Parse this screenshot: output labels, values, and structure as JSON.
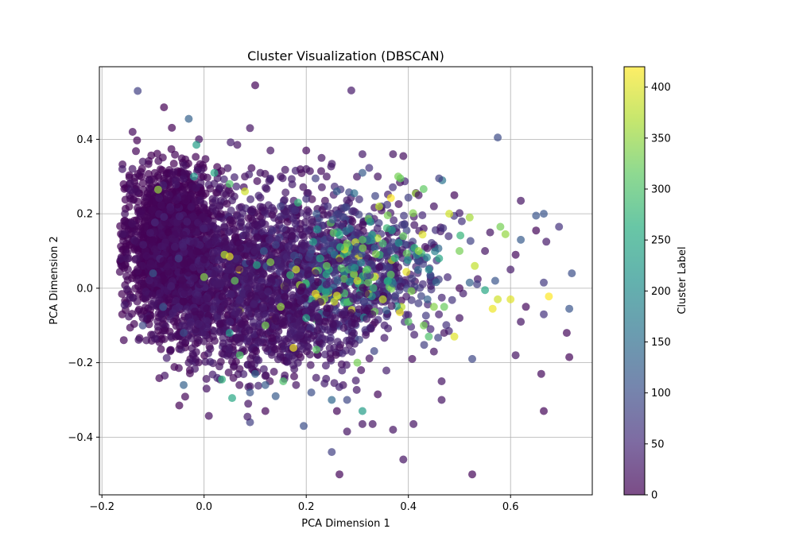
{
  "chart_data": {
    "type": "scatter",
    "title": "Cluster Visualization (DBSCAN)",
    "xlabel": "PCA Dimension 1",
    "ylabel": "PCA Dimension 2",
    "xlim": [
      -0.205,
      0.76
    ],
    "ylim": [
      -0.555,
      0.595
    ],
    "x_ticks": [
      -0.2,
      0.0,
      0.2,
      0.4,
      0.6
    ],
    "x_tick_labels": [
      "−0.2",
      "0.0",
      "0.2",
      "0.4",
      "0.6"
    ],
    "y_ticks": [
      -0.4,
      -0.2,
      0.0,
      0.2,
      0.4
    ],
    "y_tick_labels": [
      "−0.4",
      "−0.2",
      "0.0",
      "0.2",
      "0.4"
    ],
    "grid": true,
    "colormap": "viridis",
    "colorbar": {
      "label": "Cluster Label",
      "min": 0,
      "max": 420,
      "ticks": [
        0,
        50,
        100,
        150,
        200,
        250,
        300,
        350,
        400
      ],
      "tick_labels": [
        "0",
        "50",
        "100",
        "150",
        "200",
        "250",
        "300",
        "350",
        "400"
      ]
    },
    "point_alpha": 0.7,
    "points": [
      {
        "x": -0.13,
        "y": 0.53,
        "c": 80
      },
      {
        "x": 0.1,
        "y": 0.545,
        "c": 5
      },
      {
        "x": -0.03,
        "y": 0.455,
        "c": 130
      },
      {
        "x": 0.575,
        "y": 0.405,
        "c": 95
      },
      {
        "x": -0.14,
        "y": 0.42,
        "c": 10
      },
      {
        "x": 0.09,
        "y": 0.43,
        "c": 20
      },
      {
        "x": -0.01,
        "y": 0.4,
        "c": 15
      },
      {
        "x": -0.015,
        "y": 0.385,
        "c": 230
      },
      {
        "x": 0.2,
        "y": 0.37,
        "c": 10
      },
      {
        "x": 0.37,
        "y": 0.36,
        "c": 20
      },
      {
        "x": 0.39,
        "y": 0.355,
        "c": 15
      },
      {
        "x": 0.31,
        "y": 0.36,
        "c": 30
      },
      {
        "x": -0.16,
        "y": 0.32,
        "c": 30
      },
      {
        "x": 0.38,
        "y": 0.3,
        "c": 330
      },
      {
        "x": 0.46,
        "y": 0.295,
        "c": 80
      },
      {
        "x": 0.49,
        "y": 0.25,
        "c": 10
      },
      {
        "x": 0.31,
        "y": 0.31,
        "c": 120
      },
      {
        "x": 0.62,
        "y": 0.235,
        "c": 20
      },
      {
        "x": 0.65,
        "y": 0.195,
        "c": 110
      },
      {
        "x": 0.665,
        "y": 0.2,
        "c": 110
      },
      {
        "x": 0.695,
        "y": 0.165,
        "c": 60
      },
      {
        "x": 0.65,
        "y": 0.155,
        "c": 5
      },
      {
        "x": 0.62,
        "y": 0.13,
        "c": 120
      },
      {
        "x": 0.67,
        "y": 0.125,
        "c": 30
      },
      {
        "x": 0.58,
        "y": 0.165,
        "c": 330
      },
      {
        "x": 0.59,
        "y": 0.145,
        "c": 350
      },
      {
        "x": 0.52,
        "y": 0.19,
        "c": 360
      },
      {
        "x": 0.48,
        "y": 0.2,
        "c": 390
      },
      {
        "x": 0.61,
        "y": 0.09,
        "c": 10
      },
      {
        "x": 0.6,
        "y": 0.05,
        "c": 30
      },
      {
        "x": 0.72,
        "y": 0.04,
        "c": 100
      },
      {
        "x": 0.665,
        "y": 0.015,
        "c": 70
      },
      {
        "x": 0.57,
        "y": 0.02,
        "c": 110
      },
      {
        "x": 0.52,
        "y": 0.015,
        "c": 130
      },
      {
        "x": 0.55,
        "y": -0.005,
        "c": 250
      },
      {
        "x": 0.575,
        "y": -0.03,
        "c": 390
      },
      {
        "x": 0.6,
        "y": -0.03,
        "c": 400
      },
      {
        "x": 0.675,
        "y": -0.022,
        "c": 420
      },
      {
        "x": 0.565,
        "y": -0.055,
        "c": 410
      },
      {
        "x": 0.63,
        "y": -0.05,
        "c": 10
      },
      {
        "x": 0.715,
        "y": -0.055,
        "c": 110
      },
      {
        "x": 0.665,
        "y": -0.07,
        "c": 60
      },
      {
        "x": 0.62,
        "y": -0.09,
        "c": 20
      },
      {
        "x": 0.71,
        "y": -0.12,
        "c": 10
      },
      {
        "x": 0.49,
        "y": -0.13,
        "c": 400
      },
      {
        "x": 0.47,
        "y": -0.12,
        "c": 20
      },
      {
        "x": 0.61,
        "y": -0.18,
        "c": 20
      },
      {
        "x": 0.715,
        "y": -0.185,
        "c": 5
      },
      {
        "x": 0.525,
        "y": -0.19,
        "c": 90
      },
      {
        "x": 0.66,
        "y": -0.23,
        "c": 10
      },
      {
        "x": 0.465,
        "y": -0.25,
        "c": 20
      },
      {
        "x": 0.465,
        "y": -0.3,
        "c": 20
      },
      {
        "x": 0.665,
        "y": -0.33,
        "c": 5
      },
      {
        "x": 0.525,
        "y": -0.5,
        "c": 5
      },
      {
        "x": 0.265,
        "y": -0.5,
        "c": 5
      },
      {
        "x": 0.25,
        "y": -0.44,
        "c": 80
      },
      {
        "x": 0.39,
        "y": -0.46,
        "c": 20
      },
      {
        "x": 0.37,
        "y": -0.38,
        "c": 20
      },
      {
        "x": 0.41,
        "y": -0.365,
        "c": 20
      },
      {
        "x": 0.34,
        "y": -0.285,
        "c": 10
      },
      {
        "x": 0.31,
        "y": -0.33,
        "c": 230
      },
      {
        "x": 0.28,
        "y": -0.385,
        "c": 20
      },
      {
        "x": 0.31,
        "y": -0.365,
        "c": 20
      },
      {
        "x": 0.33,
        "y": -0.365,
        "c": 20
      },
      {
        "x": 0.195,
        "y": -0.37,
        "c": 100
      },
      {
        "x": 0.09,
        "y": -0.36,
        "c": 80
      },
      {
        "x": 0.085,
        "y": -0.345,
        "c": 30
      },
      {
        "x": -0.04,
        "y": -0.26,
        "c": 130
      },
      {
        "x": 0.035,
        "y": -0.245,
        "c": 270
      },
      {
        "x": 0.055,
        "y": -0.295,
        "c": 250
      },
      {
        "x": 0.14,
        "y": -0.29,
        "c": 120
      },
      {
        "x": 0.155,
        "y": -0.25,
        "c": 300
      },
      {
        "x": 0.175,
        "y": -0.16,
        "c": 410
      },
      {
        "x": 0.22,
        "y": -0.165,
        "c": 310
      },
      {
        "x": 0.3,
        "y": -0.2,
        "c": 330
      },
      {
        "x": 0.4,
        "y": -0.09,
        "c": 310
      },
      {
        "x": 0.43,
        "y": -0.1,
        "c": 330
      },
      {
        "x": 0.44,
        "y": -0.13,
        "c": 300
      },
      {
        "x": 0.45,
        "y": -0.05,
        "c": 340
      },
      {
        "x": 0.47,
        "y": -0.05,
        "c": 320
      },
      {
        "x": 0.35,
        "y": -0.03,
        "c": 380
      },
      {
        "x": 0.3,
        "y": 0.02,
        "c": 390
      },
      {
        "x": 0.32,
        "y": 0.05,
        "c": 300
      },
      {
        "x": 0.36,
        "y": 0.02,
        "c": 250
      },
      {
        "x": 0.24,
        "y": 0.06,
        "c": 320
      },
      {
        "x": 0.18,
        "y": 0.05,
        "c": 390
      },
      {
        "x": 0.13,
        "y": 0.07,
        "c": 340
      },
      {
        "x": 0.06,
        "y": 0.02,
        "c": 320
      },
      {
        "x": 0.04,
        "y": 0.09,
        "c": 370
      },
      {
        "x": 0.05,
        "y": -0.12,
        "c": 220
      },
      {
        "x": 0.07,
        "y": -0.18,
        "c": 300
      },
      {
        "x": 0.12,
        "y": -0.1,
        "c": 330
      },
      {
        "x": 0.15,
        "y": -0.05,
        "c": 350
      },
      {
        "x": 0.2,
        "y": -0.08,
        "c": 240
      },
      {
        "x": 0.26,
        "y": -0.02,
        "c": 400
      },
      {
        "x": 0.28,
        "y": 0.12,
        "c": 330
      },
      {
        "x": 0.31,
        "y": 0.13,
        "c": 310
      },
      {
        "x": 0.35,
        "y": 0.12,
        "c": 290
      },
      {
        "x": 0.39,
        "y": 0.14,
        "c": 320
      },
      {
        "x": 0.42,
        "y": 0.1,
        "c": 350
      },
      {
        "x": 0.44,
        "y": 0.05,
        "c": 200
      },
      {
        "x": 0.46,
        "y": 0.08,
        "c": 250
      },
      {
        "x": 0.5,
        "y": 0.1,
        "c": 330
      },
      {
        "x": 0.53,
        "y": 0.06,
        "c": 380
      },
      {
        "x": 0.26,
        "y": 0.26,
        "c": 120
      },
      {
        "x": 0.2,
        "y": 0.24,
        "c": 60
      },
      {
        "x": 0.22,
        "y": 0.2,
        "c": 110
      },
      {
        "x": 0.15,
        "y": 0.22,
        "c": 80
      },
      {
        "x": 0.08,
        "y": 0.26,
        "c": 390
      },
      {
        "x": -0.09,
        "y": 0.265,
        "c": 350
      },
      {
        "x": -0.02,
        "y": 0.3,
        "c": 220
      },
      {
        "x": 0.02,
        "y": 0.31,
        "c": 250
      },
      {
        "x": 0.05,
        "y": 0.28,
        "c": 300
      },
      {
        "x": 0.0,
        "y": 0.03,
        "c": 340
      },
      {
        "x": 0.05,
        "y": 0.085,
        "c": 400
      },
      {
        "x": -0.05,
        "y": 0.08,
        "c": 80
      },
      {
        "x": -0.1,
        "y": 0.04,
        "c": 120
      },
      {
        "x": -0.08,
        "y": -0.05,
        "c": 110
      },
      {
        "x": -0.12,
        "y": -0.1,
        "c": 90
      },
      {
        "x": -0.04,
        "y": -0.12,
        "c": 100
      },
      {
        "x": 0.1,
        "y": -0.23,
        "c": 130
      },
      {
        "x": 0.09,
        "y": -0.28,
        "c": 110
      },
      {
        "x": 0.12,
        "y": -0.26,
        "c": 120
      },
      {
        "x": 0.25,
        "y": -0.3,
        "c": 140
      },
      {
        "x": 0.28,
        "y": -0.3,
        "c": 90
      },
      {
        "x": 0.21,
        "y": -0.28,
        "c": 100
      },
      {
        "x": 0.18,
        "y": -0.26,
        "c": 20
      },
      {
        "x": 0.08,
        "y": 0.3,
        "c": 20
      },
      {
        "x": 0.13,
        "y": 0.37,
        "c": 20
      },
      {
        "x": 0.065,
        "y": 0.385,
        "c": 20
      },
      {
        "x": -0.04,
        "y": 0.33,
        "c": 20
      },
      {
        "x": -0.12,
        "y": 0.34,
        "c": 20
      },
      {
        "x": -0.155,
        "y": 0.2,
        "c": 20
      },
      {
        "x": -0.16,
        "y": 0.145,
        "c": 20
      },
      {
        "x": -0.15,
        "y": 0.08,
        "c": 20
      },
      {
        "x": -0.145,
        "y": -0.025,
        "c": 20
      },
      {
        "x": -0.12,
        "y": -0.08,
        "c": 20
      },
      {
        "x": -0.1,
        "y": -0.125,
        "c": 20
      },
      {
        "x": -0.03,
        "y": -0.2,
        "c": 20
      },
      {
        "x": 0.03,
        "y": -0.21,
        "c": 20
      },
      {
        "x": 0.12,
        "y": -0.33,
        "c": 5
      },
      {
        "x": 0.26,
        "y": -0.33,
        "c": 5
      },
      {
        "x": 0.45,
        "y": -0.17,
        "c": 20
      },
      {
        "x": 0.5,
        "y": -0.08,
        "c": 20
      },
      {
        "x": 0.5,
        "y": 0.0,
        "c": 10
      },
      {
        "x": 0.55,
        "y": 0.1,
        "c": 20
      },
      {
        "x": 0.56,
        "y": 0.15,
        "c": 20
      },
      {
        "x": 0.45,
        "y": 0.22,
        "c": 20
      },
      {
        "x": 0.42,
        "y": 0.25,
        "c": 20
      },
      {
        "x": 0.34,
        "y": 0.3,
        "c": 20
      },
      {
        "x": 0.24,
        "y": 0.3,
        "c": 20
      },
      {
        "x": 0.2,
        "y": 0.32,
        "c": 20
      },
      {
        "x": 0.23,
        "y": 0.35,
        "c": 20
      },
      {
        "x": 0.15,
        "y": 0.3,
        "c": 20
      },
      {
        "x": 0.11,
        "y": 0.31,
        "c": 20
      }
    ],
    "dense_regions": [
      {
        "cx": -0.07,
        "cy": 0.13,
        "rx": 0.075,
        "ry": 0.17,
        "n": 1300,
        "c_range": [
          0,
          8
        ]
      },
      {
        "cx": -0.03,
        "cy": 0.05,
        "rx": 0.1,
        "ry": 0.2,
        "n": 700,
        "c_range": [
          0,
          25
        ]
      },
      {
        "cx": 0.12,
        "cy": 0.06,
        "rx": 0.16,
        "ry": 0.2,
        "n": 1000,
        "c_range": [
          5,
          45
        ]
      },
      {
        "cx": 0.3,
        "cy": 0.05,
        "rx": 0.15,
        "ry": 0.17,
        "n": 600,
        "c_range": [
          10,
          90
        ]
      },
      {
        "cx": 0.3,
        "cy": 0.05,
        "rx": 0.15,
        "ry": 0.15,
        "n": 160,
        "c_range": [
          60,
          420
        ]
      },
      {
        "cx": 0.12,
        "cy": -0.1,
        "rx": 0.18,
        "ry": 0.13,
        "n": 500,
        "c_range": [
          5,
          40
        ]
      }
    ]
  }
}
